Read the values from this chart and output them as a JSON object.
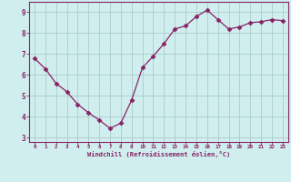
{
  "x": [
    0,
    1,
    2,
    3,
    4,
    5,
    6,
    7,
    8,
    9,
    10,
    11,
    12,
    13,
    14,
    15,
    16,
    17,
    18,
    19,
    20,
    21,
    22,
    23
  ],
  "y": [
    6.8,
    6.3,
    5.6,
    5.2,
    4.6,
    4.2,
    3.85,
    3.45,
    3.7,
    4.8,
    6.35,
    6.9,
    7.5,
    8.2,
    8.35,
    8.8,
    9.1,
    8.65,
    8.2,
    8.3,
    8.5,
    8.55,
    8.65,
    8.6
  ],
  "line_color": "#882266",
  "marker": "D",
  "marker_size": 2.5,
  "bg_color": "#d0eeee",
  "grid_color": "#aacccc",
  "xlabel": "Windchill (Refroidissement éolien,°C)",
  "xlabel_color": "#882266",
  "tick_color": "#882266",
  "ylim": [
    2.8,
    9.5
  ],
  "xlim": [
    -0.5,
    23.5
  ],
  "yticks": [
    3,
    4,
    5,
    6,
    7,
    8,
    9
  ],
  "xticks": [
    0,
    1,
    2,
    3,
    4,
    5,
    6,
    7,
    8,
    9,
    10,
    11,
    12,
    13,
    14,
    15,
    16,
    17,
    18,
    19,
    20,
    21,
    22,
    23
  ]
}
